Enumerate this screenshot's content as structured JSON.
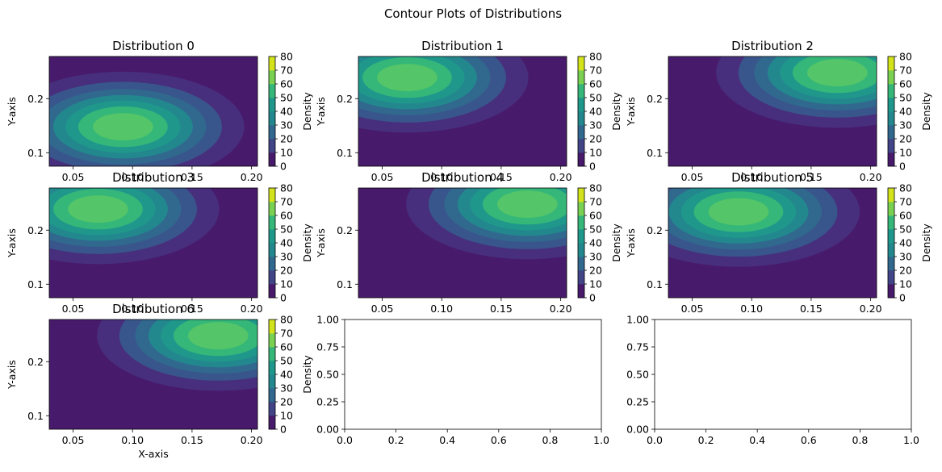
{
  "figure": {
    "suptitle": "Contour Plots of Distributions"
  },
  "colormap": [
    "#440154",
    "#481a6c",
    "#472f7d",
    "#414487",
    "#39568c",
    "#31688e",
    "#2a788e",
    "#23888e",
    "#1f988b",
    "#22a884",
    "#35b779",
    "#54c568",
    "#7ad151",
    "#a5db36",
    "#d2e21b",
    "#fde725"
  ],
  "chart_data": [
    {
      "type": "contour",
      "title": "Distribution 0",
      "xlabel": "",
      "ylabel": "Y-axis",
      "center": [
        0.092,
        0.148
      ],
      "sigma": [
        0.05,
        0.05
      ],
      "xlim": [
        0.03,
        0.205
      ],
      "ylim": [
        0.075,
        0.278
      ],
      "xticks": [
        "0.05",
        "0.10",
        "0.15",
        "0.20"
      ],
      "yticks": [
        "0.1",
        "0.2"
      ],
      "colorbar": {
        "label": "Density",
        "ticks": [
          "0",
          "10",
          "20",
          "30",
          "40",
          "50",
          "60",
          "70",
          "80"
        ]
      }
    },
    {
      "type": "contour",
      "title": "Distribution 1",
      "xlabel": "",
      "ylabel": "Y-axis",
      "center": [
        0.071,
        0.239
      ],
      "sigma": [
        0.05,
        0.05
      ],
      "xlim": [
        0.03,
        0.205
      ],
      "ylim": [
        0.075,
        0.278
      ],
      "xticks": [
        "0.05",
        "0.10",
        "0.15",
        "0.20"
      ],
      "yticks": [
        "0.1",
        "0.2"
      ],
      "colorbar": {
        "label": "Density",
        "ticks": [
          "0",
          "10",
          "20",
          "30",
          "40",
          "50",
          "60",
          "70",
          "80"
        ]
      }
    },
    {
      "type": "contour",
      "title": "Distribution 2",
      "xlabel": "",
      "ylabel": "Y-axis",
      "center": [
        0.172,
        0.248
      ],
      "sigma": [
        0.05,
        0.05
      ],
      "xlim": [
        0.03,
        0.205
      ],
      "ylim": [
        0.075,
        0.278
      ],
      "xticks": [
        "0.05",
        "0.10",
        "0.15",
        "0.20"
      ],
      "yticks": [
        "0.1",
        "0.2"
      ],
      "colorbar": {
        "label": "Density",
        "ticks": [
          "0",
          "10",
          "20",
          "30",
          "40",
          "50",
          "60",
          "70",
          "80"
        ]
      }
    },
    {
      "type": "contour",
      "title": "Distribution 3",
      "xlabel": "",
      "ylabel": "Y-axis",
      "center": [
        0.071,
        0.239
      ],
      "sigma": [
        0.05,
        0.05
      ],
      "xlim": [
        0.03,
        0.205
      ],
      "ylim": [
        0.075,
        0.278
      ],
      "xticks": [
        "0.05",
        "0.10",
        "0.15",
        "0.20"
      ],
      "yticks": [
        "0.1",
        "0.2"
      ],
      "colorbar": {
        "label": "Density",
        "ticks": [
          "0",
          "10",
          "20",
          "30",
          "40",
          "50",
          "60",
          "70",
          "80"
        ]
      }
    },
    {
      "type": "contour",
      "title": "Distribution 4",
      "xlabel": "",
      "ylabel": "Y-axis",
      "center": [
        0.172,
        0.248
      ],
      "sigma": [
        0.05,
        0.05
      ],
      "xlim": [
        0.03,
        0.205
      ],
      "ylim": [
        0.075,
        0.278
      ],
      "xticks": [
        "0.05",
        "0.10",
        "0.15",
        "0.20"
      ],
      "yticks": [
        "0.1",
        "0.2"
      ],
      "colorbar": {
        "label": "Density",
        "ticks": [
          "0",
          "10",
          "20",
          "30",
          "40",
          "50",
          "60",
          "70",
          "80"
        ]
      }
    },
    {
      "type": "contour",
      "title": "Distribution 5",
      "xlabel": "",
      "ylabel": "Y-axis",
      "center": [
        0.089,
        0.234
      ],
      "sigma": [
        0.05,
        0.05
      ],
      "xlim": [
        0.03,
        0.205
      ],
      "ylim": [
        0.075,
        0.278
      ],
      "xticks": [
        "0.05",
        "0.10",
        "0.15",
        "0.20"
      ],
      "yticks": [
        "0.1",
        "0.2"
      ],
      "colorbar": {
        "label": "Density",
        "ticks": [
          "0",
          "10",
          "20",
          "30",
          "40",
          "50",
          "60",
          "70",
          "80"
        ]
      }
    },
    {
      "type": "contour",
      "title": "Distribution 6",
      "xlabel": "X-axis",
      "ylabel": "Y-axis",
      "center": [
        0.172,
        0.248
      ],
      "sigma": [
        0.05,
        0.05
      ],
      "xlim": [
        0.03,
        0.205
      ],
      "ylim": [
        0.075,
        0.278
      ],
      "xticks": [
        "0.05",
        "0.10",
        "0.15",
        "0.20"
      ],
      "yticks": [
        "0.1",
        "0.2"
      ],
      "colorbar": {
        "label": "Density",
        "ticks": [
          "0",
          "10",
          "20",
          "30",
          "40",
          "50",
          "60",
          "70",
          "80"
        ]
      }
    },
    {
      "type": "empty",
      "xlim": [
        0,
        1
      ],
      "ylim": [
        0,
        1
      ],
      "xticks": [
        "0.0",
        "0.2",
        "0.4",
        "0.6",
        "0.8",
        "1.0"
      ],
      "yticks": [
        "0.00",
        "0.25",
        "0.50",
        "0.75",
        "1.00"
      ]
    },
    {
      "type": "empty",
      "xlim": [
        0,
        1
      ],
      "ylim": [
        0,
        1
      ],
      "xticks": [
        "0.0",
        "0.2",
        "0.4",
        "0.6",
        "0.8",
        "1.0"
      ],
      "yticks": [
        "0.00",
        "0.25",
        "0.50",
        "0.75",
        "1.00"
      ]
    }
  ]
}
